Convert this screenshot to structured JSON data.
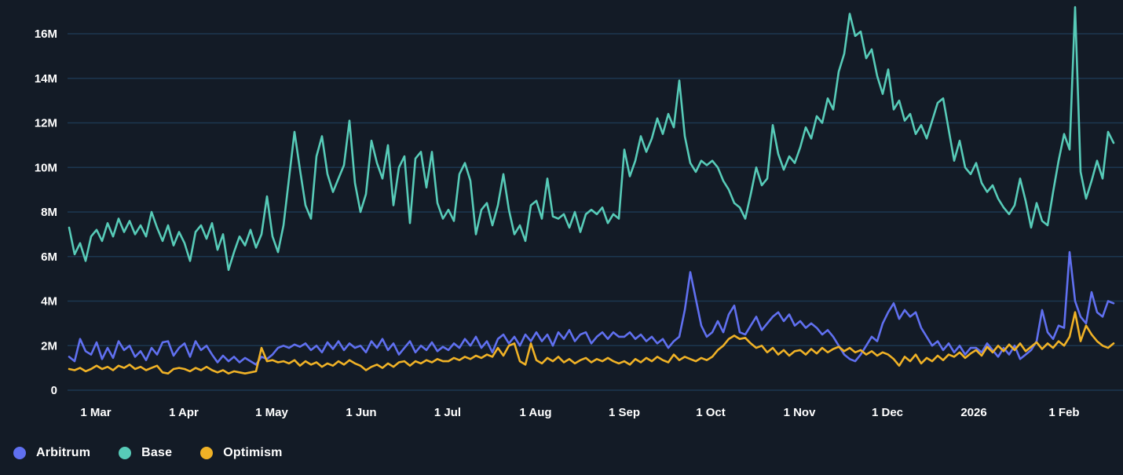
{
  "theme": {
    "background": "#131b26",
    "grid_color": "#1e3c58",
    "tick_text_color": "#ffffff"
  },
  "chart_data": {
    "type": "line",
    "title": "",
    "grid": "horizontal",
    "legend_position": "bottom-left",
    "x_axis": {
      "tick_labels": [
        "1 Mar",
        "1 Apr",
        "1 May",
        "1 Jun",
        "1 Jul",
        "1 Aug",
        "1 Sep",
        "1 Oct",
        "1 Nov",
        "1 Dec",
        "2026",
        "1 Feb"
      ]
    },
    "y_axis": {
      "tick_labels": [
        "0",
        "2M",
        "4M",
        "6M",
        "8M",
        "10M",
        "12M",
        "14M",
        "16M"
      ],
      "range": [
        0,
        17.6
      ],
      "unit": "M"
    },
    "series": [
      {
        "name": "Arbitrum",
        "color": "#6070f0",
        "values": [
          1.5,
          1.3,
          2.3,
          1.75,
          1.6,
          2.15,
          1.4,
          1.9,
          1.45,
          2.2,
          1.8,
          2.0,
          1.5,
          1.75,
          1.35,
          1.9,
          1.6,
          2.15,
          2.2,
          1.55,
          1.9,
          2.1,
          1.5,
          2.2,
          1.8,
          2.0,
          1.6,
          1.25,
          1.55,
          1.3,
          1.5,
          1.25,
          1.45,
          1.3,
          1.15,
          1.5,
          1.4,
          1.6,
          1.9,
          2.0,
          1.9,
          2.05,
          1.95,
          2.1,
          1.8,
          2.0,
          1.7,
          2.15,
          1.85,
          2.2,
          1.8,
          2.1,
          1.9,
          2.0,
          1.7,
          2.2,
          1.9,
          2.3,
          1.8,
          2.1,
          1.6,
          1.9,
          2.2,
          1.7,
          2.0,
          1.8,
          2.15,
          1.75,
          1.95,
          1.8,
          2.1,
          1.9,
          2.3,
          2.0,
          2.4,
          1.9,
          2.2,
          1.7,
          2.3,
          2.5,
          2.1,
          2.4,
          2.0,
          2.5,
          2.2,
          2.6,
          2.2,
          2.5,
          2.0,
          2.6,
          2.3,
          2.7,
          2.2,
          2.5,
          2.6,
          2.1,
          2.4,
          2.6,
          2.3,
          2.6,
          2.4,
          2.4,
          2.6,
          2.3,
          2.5,
          2.2,
          2.4,
          2.1,
          2.3,
          1.9,
          2.2,
          2.4,
          3.6,
          5.3,
          4.1,
          2.9,
          2.4,
          2.6,
          3.1,
          2.6,
          3.4,
          3.8,
          2.6,
          2.5,
          2.9,
          3.3,
          2.7,
          3.0,
          3.3,
          3.5,
          3.1,
          3.4,
          2.9,
          3.1,
          2.8,
          3.0,
          2.8,
          2.5,
          2.7,
          2.4,
          2.0,
          1.6,
          1.4,
          1.3,
          1.6,
          2.0,
          2.4,
          2.2,
          3.0,
          3.5,
          3.9,
          3.2,
          3.6,
          3.3,
          3.5,
          2.8,
          2.4,
          2.0,
          2.2,
          1.8,
          2.1,
          1.7,
          2.0,
          1.6,
          1.9,
          1.9,
          1.7,
          2.1,
          1.8,
          1.5,
          1.9,
          1.6,
          2.0,
          1.4,
          1.6,
          1.8,
          2.2,
          3.6,
          2.6,
          2.3,
          2.9,
          2.8,
          6.2,
          4.0,
          3.3,
          3.0,
          4.4,
          3.5,
          3.3,
          4.0,
          3.9
        ]
      },
      {
        "name": "Base",
        "color": "#57cbb8",
        "values": [
          7.3,
          6.1,
          6.6,
          5.8,
          6.9,
          7.2,
          6.7,
          7.5,
          6.9,
          7.7,
          7.1,
          7.6,
          7.0,
          7.4,
          6.9,
          8.0,
          7.3,
          6.7,
          7.4,
          6.5,
          7.1,
          6.6,
          5.8,
          7.1,
          7.4,
          6.8,
          7.5,
          6.3,
          7.0,
          5.4,
          6.2,
          6.9,
          6.5,
          7.2,
          6.4,
          7.0,
          8.7,
          6.9,
          6.2,
          7.4,
          9.5,
          11.6,
          9.9,
          8.3,
          7.7,
          10.5,
          11.4,
          9.7,
          8.9,
          9.5,
          10.1,
          12.1,
          9.3,
          8.0,
          8.8,
          11.2,
          10.2,
          9.5,
          11.0,
          8.3,
          10.0,
          10.5,
          7.5,
          10.4,
          10.7,
          9.1,
          10.7,
          8.4,
          7.7,
          8.1,
          7.6,
          9.7,
          10.2,
          9.4,
          7.0,
          8.1,
          8.4,
          7.4,
          8.3,
          9.7,
          8.1,
          7.0,
          7.4,
          6.7,
          8.3,
          8.5,
          7.7,
          9.5,
          7.8,
          7.7,
          7.9,
          7.3,
          8.0,
          7.1,
          7.9,
          8.1,
          7.9,
          8.2,
          7.5,
          7.9,
          7.7,
          10.8,
          9.6,
          10.3,
          11.4,
          10.7,
          11.3,
          12.2,
          11.5,
          12.4,
          11.8,
          13.9,
          11.4,
          10.2,
          9.8,
          10.3,
          10.1,
          10.3,
          10.0,
          9.4,
          9.0,
          8.4,
          8.2,
          7.7,
          8.8,
          10.0,
          9.2,
          9.5,
          11.9,
          10.6,
          9.9,
          10.5,
          10.2,
          10.9,
          11.8,
          11.3,
          12.3,
          12.0,
          13.1,
          12.6,
          14.3,
          15.1,
          16.9,
          15.9,
          16.1,
          14.9,
          15.3,
          14.1,
          13.3,
          14.4,
          12.6,
          13.0,
          12.1,
          12.4,
          11.5,
          11.9,
          11.3,
          12.1,
          12.9,
          13.1,
          11.7,
          10.3,
          11.2,
          10.0,
          9.7,
          10.2,
          9.3,
          8.9,
          9.2,
          8.6,
          8.2,
          7.9,
          8.3,
          9.5,
          8.5,
          7.3,
          8.4,
          7.6,
          7.4,
          8.9,
          10.3,
          11.5,
          10.8,
          17.2,
          9.8,
          8.6,
          9.4,
          10.3,
          9.5,
          11.6,
          11.1
        ]
      },
      {
        "name": "Optimism",
        "color": "#f0b226",
        "values": [
          0.95,
          0.9,
          1.0,
          0.85,
          0.95,
          1.1,
          0.95,
          1.05,
          0.9,
          1.1,
          1.0,
          1.15,
          0.95,
          1.05,
          0.9,
          1.0,
          1.1,
          0.8,
          0.75,
          0.95,
          1.0,
          0.95,
          0.85,
          1.0,
          0.9,
          1.05,
          0.9,
          0.8,
          0.9,
          0.75,
          0.85,
          0.8,
          0.75,
          0.8,
          0.85,
          1.9,
          1.3,
          1.35,
          1.25,
          1.3,
          1.2,
          1.35,
          1.1,
          1.3,
          1.15,
          1.25,
          1.05,
          1.2,
          1.1,
          1.3,
          1.15,
          1.35,
          1.2,
          1.1,
          0.9,
          1.05,
          1.15,
          1.0,
          1.2,
          1.05,
          1.25,
          1.3,
          1.1,
          1.3,
          1.2,
          1.35,
          1.25,
          1.4,
          1.3,
          1.3,
          1.45,
          1.35,
          1.5,
          1.4,
          1.55,
          1.45,
          1.6,
          1.5,
          1.9,
          1.55,
          2.0,
          2.1,
          1.3,
          1.15,
          2.1,
          1.35,
          1.2,
          1.45,
          1.3,
          1.5,
          1.25,
          1.4,
          1.2,
          1.35,
          1.45,
          1.25,
          1.4,
          1.3,
          1.45,
          1.3,
          1.2,
          1.3,
          1.15,
          1.4,
          1.25,
          1.45,
          1.3,
          1.5,
          1.35,
          1.25,
          1.6,
          1.35,
          1.5,
          1.4,
          1.3,
          1.45,
          1.35,
          1.5,
          1.8,
          2.0,
          2.3,
          2.45,
          2.3,
          2.35,
          2.1,
          1.9,
          2.0,
          1.7,
          1.9,
          1.6,
          1.8,
          1.55,
          1.75,
          1.8,
          1.6,
          1.85,
          1.65,
          1.9,
          1.7,
          1.85,
          1.95,
          1.75,
          1.9,
          1.7,
          1.8,
          1.6,
          1.75,
          1.55,
          1.7,
          1.6,
          1.4,
          1.1,
          1.5,
          1.3,
          1.6,
          1.2,
          1.45,
          1.3,
          1.55,
          1.35,
          1.6,
          1.5,
          1.7,
          1.45,
          1.65,
          1.8,
          1.55,
          1.95,
          1.7,
          2.0,
          1.75,
          2.05,
          1.8,
          2.1,
          1.75,
          1.95,
          2.15,
          1.85,
          2.1,
          1.9,
          2.2,
          2.0,
          2.4,
          3.5,
          2.2,
          2.9,
          2.5,
          2.2,
          2.0,
          1.9,
          2.1
        ]
      }
    ]
  }
}
